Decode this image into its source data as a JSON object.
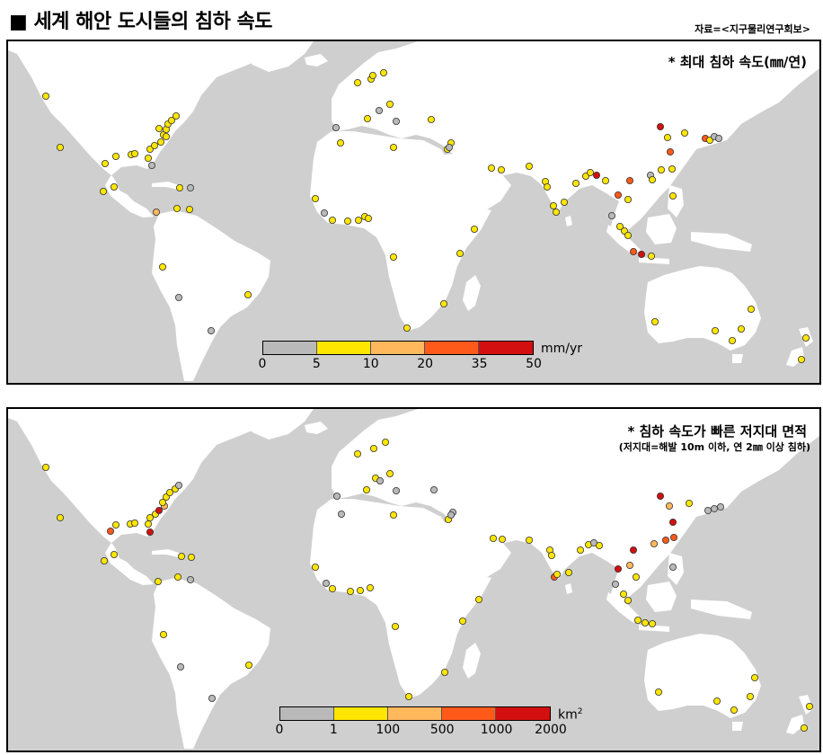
{
  "title": "■ 세계 해안 도시들의 침하 속도",
  "source": "자료=<지구물리연구회보>",
  "colors": {
    "ocean": "#cfcfcf",
    "land": "#ffffff",
    "c1": "#b9b9b9",
    "c2": "#ffe600",
    "c3": "#ffb85c",
    "c4": "#ff5a1a",
    "c5": "#d40f0f"
  },
  "panel1": {
    "title": "* 최대 침하 속도(㎜/연)",
    "legend": {
      "unit": "mm/yr",
      "ticks": [
        "0",
        "5",
        "10",
        "20",
        "35",
        "50"
      ],
      "colors": [
        "#b9b9b9",
        "#ffe600",
        "#ffb85c",
        "#ff5a1a",
        "#d40f0f"
      ]
    }
  },
  "panel2": {
    "title": "* 침하 속도가 빠른 저지대 면적",
    "subtitle": "(저지대=해발 10m 이하, 연 2㎜ 이상 침하)",
    "legend": {
      "unit": "km",
      "unit_sup": "2",
      "ticks": [
        "0",
        "1",
        "100",
        "500",
        "1000",
        "2000"
      ],
      "colors": [
        "#b9b9b9",
        "#ffe600",
        "#ffb85c",
        "#ff5a1a",
        "#d40f0f"
      ]
    }
  },
  "map_points": {
    "panel1": [
      [
        42,
        61,
        2
      ],
      [
        58,
        118,
        2
      ],
      [
        108,
        136,
        2
      ],
      [
        120,
        128,
        2
      ],
      [
        137,
        126,
        2
      ],
      [
        141,
        125,
        2
      ],
      [
        160,
        138,
        1
      ],
      [
        156,
        130,
        2
      ],
      [
        158,
        120,
        2
      ],
      [
        163,
        116,
        2
      ],
      [
        170,
        112,
        2
      ],
      [
        173,
        104,
        2
      ],
      [
        176,
        98,
        2
      ],
      [
        178,
        92,
        2
      ],
      [
        182,
        88,
        2
      ],
      [
        187,
        83,
        2
      ],
      [
        168,
        97,
        2
      ],
      [
        176,
        106,
        2
      ],
      [
        106,
        167,
        2
      ],
      [
        118,
        162,
        2
      ],
      [
        165,
        190,
        3
      ],
      [
        188,
        186,
        2
      ],
      [
        202,
        187,
        2
      ],
      [
        203,
        163,
        1
      ],
      [
        191,
        163,
        2
      ],
      [
        172,
        251,
        2
      ],
      [
        190,
        285,
        1
      ],
      [
        226,
        322,
        1
      ],
      [
        267,
        282,
        2
      ],
      [
        389,
        46,
        2
      ],
      [
        404,
        42,
        2
      ],
      [
        406,
        38,
        2
      ],
      [
        418,
        35,
        2
      ],
      [
        400,
        86,
        2
      ],
      [
        413,
        77,
        1
      ],
      [
        425,
        70,
        2
      ],
      [
        432,
        89,
        1
      ],
      [
        471,
        87,
        2
      ],
      [
        365,
        96,
        1
      ],
      [
        370,
        113,
        2
      ],
      [
        429,
        118,
        2
      ],
      [
        489,
        120,
        2
      ],
      [
        493,
        113,
        2
      ],
      [
        491,
        118,
        1
      ],
      [
        538,
        141,
        2
      ],
      [
        549,
        143,
        2
      ],
      [
        580,
        139,
        2
      ],
      [
        598,
        156,
        2
      ],
      [
        600,
        162,
        2
      ],
      [
        607,
        183,
        2
      ],
      [
        610,
        190,
        2
      ],
      [
        619,
        179,
        2
      ],
      [
        632,
        158,
        2
      ],
      [
        643,
        150,
        2
      ],
      [
        648,
        146,
        2
      ],
      [
        655,
        149,
        5
      ],
      [
        665,
        155,
        2
      ],
      [
        342,
        175,
        2
      ],
      [
        352,
        191,
        1
      ],
      [
        361,
        199,
        2
      ],
      [
        378,
        200,
        2
      ],
      [
        390,
        199,
        2
      ],
      [
        397,
        195,
        2
      ],
      [
        401,
        197,
        2
      ],
      [
        519,
        209,
        2
      ],
      [
        503,
        236,
        2
      ],
      [
        429,
        240,
        2
      ],
      [
        485,
        292,
        2
      ],
      [
        444,
        319,
        2
      ],
      [
        726,
        95,
        5
      ],
      [
        734,
        107,
        2
      ],
      [
        737,
        123,
        4
      ],
      [
        739,
        142,
        2
      ],
      [
        727,
        143,
        2
      ],
      [
        715,
        149,
        1
      ],
      [
        753,
        102,
        2
      ],
      [
        776,
        108,
        4
      ],
      [
        781,
        110,
        2
      ],
      [
        786,
        106,
        1
      ],
      [
        791,
        108,
        1
      ],
      [
        692,
        155,
        4
      ],
      [
        679,
        171,
        4
      ],
      [
        690,
        176,
        2
      ],
      [
        717,
        154,
        2
      ],
      [
        740,
        172,
        2
      ],
      [
        672,
        194,
        1
      ],
      [
        681,
        206,
        2
      ],
      [
        686,
        211,
        2
      ],
      [
        690,
        216,
        2
      ],
      [
        696,
        234,
        4
      ],
      [
        705,
        237,
        5
      ],
      [
        716,
        239,
        2
      ],
      [
        720,
        312,
        2
      ],
      [
        787,
        322,
        2
      ],
      [
        806,
        333,
        2
      ],
      [
        816,
        320,
        2
      ],
      [
        827,
        298,
        2
      ],
      [
        888,
        330,
        2
      ],
      [
        883,
        354,
        2
      ]
    ],
    "panel2": [
      [
        42,
        65,
        2
      ],
      [
        58,
        121,
        2
      ],
      [
        114,
        136,
        4
      ],
      [
        120,
        129,
        2
      ],
      [
        136,
        128,
        2
      ],
      [
        141,
        127,
        2
      ],
      [
        158,
        137,
        5
      ],
      [
        156,
        128,
        2
      ],
      [
        158,
        121,
        2
      ],
      [
        164,
        117,
        2
      ],
      [
        168,
        113,
        5
      ],
      [
        174,
        108,
        3
      ],
      [
        172,
        104,
        2
      ],
      [
        176,
        98,
        2
      ],
      [
        180,
        93,
        2
      ],
      [
        186,
        89,
        2
      ],
      [
        190,
        85,
        1
      ],
      [
        107,
        169,
        2
      ],
      [
        118,
        162,
        2
      ],
      [
        167,
        192,
        2
      ],
      [
        189,
        187,
        2
      ],
      [
        203,
        190,
        1
      ],
      [
        204,
        165,
        2
      ],
      [
        193,
        164,
        2
      ],
      [
        173,
        251,
        2
      ],
      [
        192,
        287,
        1
      ],
      [
        227,
        322,
        1
      ],
      [
        268,
        285,
        2
      ],
      [
        389,
        50,
        2
      ],
      [
        407,
        44,
        2
      ],
      [
        420,
        37,
        2
      ],
      [
        409,
        77,
        2
      ],
      [
        414,
        80,
        1
      ],
      [
        425,
        72,
        2
      ],
      [
        432,
        91,
        1
      ],
      [
        474,
        90,
        1
      ],
      [
        366,
        97,
        1
      ],
      [
        371,
        117,
        1
      ],
      [
        399,
        90,
        2
      ],
      [
        429,
        118,
        2
      ],
      [
        490,
        123,
        2
      ],
      [
        495,
        115,
        1
      ],
      [
        493,
        118,
        1
      ],
      [
        540,
        144,
        2
      ],
      [
        550,
        145,
        2
      ],
      [
        580,
        146,
        2
      ],
      [
        603,
        157,
        2
      ],
      [
        605,
        163,
        2
      ],
      [
        608,
        187,
        4
      ],
      [
        611,
        184,
        2
      ],
      [
        624,
        182,
        2
      ],
      [
        637,
        157,
        2
      ],
      [
        646,
        151,
        2
      ],
      [
        652,
        149,
        1
      ],
      [
        658,
        152,
        2
      ],
      [
        342,
        176,
        2
      ],
      [
        354,
        194,
        1
      ],
      [
        361,
        200,
        2
      ],
      [
        381,
        203,
        2
      ],
      [
        392,
        202,
        2
      ],
      [
        403,
        199,
        2
      ],
      [
        524,
        212,
        2
      ],
      [
        506,
        236,
        2
      ],
      [
        431,
        242,
        2
      ],
      [
        486,
        293,
        2
      ],
      [
        446,
        320,
        2
      ],
      [
        726,
        97,
        5
      ],
      [
        736,
        108,
        3
      ],
      [
        740,
        126,
        5
      ],
      [
        741,
        143,
        4
      ],
      [
        732,
        146,
        4
      ],
      [
        719,
        150,
        3
      ],
      [
        758,
        105,
        2
      ],
      [
        779,
        113,
        1
      ],
      [
        786,
        111,
        1
      ],
      [
        793,
        109,
        1
      ],
      [
        696,
        157,
        5
      ],
      [
        679,
        178,
        5
      ],
      [
        692,
        174,
        3
      ],
      [
        740,
        176,
        1
      ],
      [
        699,
        187,
        2
      ],
      [
        676,
        195,
        1
      ],
      [
        685,
        206,
        2
      ],
      [
        690,
        213,
        2
      ],
      [
        701,
        235,
        2
      ],
      [
        709,
        238,
        2
      ],
      [
        717,
        239,
        2
      ],
      [
        724,
        315,
        2
      ],
      [
        789,
        325,
        2
      ],
      [
        808,
        335,
        2
      ],
      [
        826,
        320,
        2
      ],
      [
        831,
        299,
        2
      ],
      [
        892,
        331,
        2
      ],
      [
        886,
        355,
        2
      ]
    ]
  }
}
